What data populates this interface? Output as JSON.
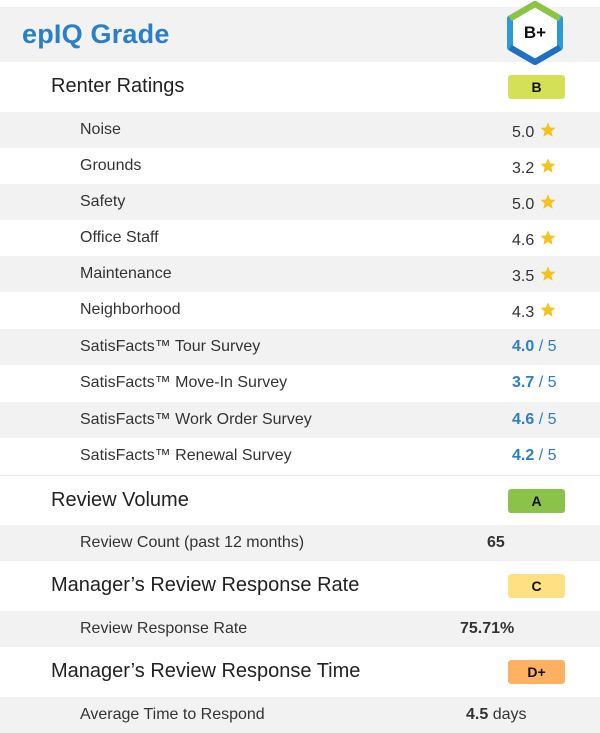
{
  "header": {
    "title": "epIQ Grade",
    "overall_grade": "B+",
    "hex_colors": {
      "top": "#8cc63f",
      "bottom": "#1f6fc5",
      "side": "#2a9bd8"
    }
  },
  "sections": {
    "renter_ratings": {
      "label": "Renter Ratings",
      "grade": "B",
      "grade_color": "#d4e157",
      "items": [
        {
          "label": "Noise",
          "value": "5.0"
        },
        {
          "label": "Grounds",
          "value": "3.2"
        },
        {
          "label": "Safety",
          "value": "5.0"
        },
        {
          "label": "Office Staff",
          "value": "4.6"
        },
        {
          "label": "Maintenance",
          "value": "3.5"
        },
        {
          "label": "Neighborhood",
          "value": "4.3"
        }
      ],
      "surveys": [
        {
          "label": "SatisFacts™ Tour Survey",
          "value": "4.0",
          "of": "/ 5"
        },
        {
          "label": "SatisFacts™ Move-In Survey",
          "value": "3.7",
          "of": "/ 5"
        },
        {
          "label": "SatisFacts™ Work Order Survey",
          "value": "4.6",
          "of": "/ 5"
        },
        {
          "label": "SatisFacts™ Renewal Survey",
          "value": "4.2",
          "of": "/ 5"
        }
      ]
    },
    "review_volume": {
      "label": "Review Volume",
      "grade": "A",
      "grade_color": "#8bc34a",
      "item_label": "Review Count (past 12 months)",
      "item_value": "65"
    },
    "response_rate": {
      "label": "Manager’s Review Response Rate",
      "grade": "C",
      "grade_color": "#ffe082",
      "item_label": "Review Response Rate",
      "item_value": "75.71%"
    },
    "response_time": {
      "label": "Manager’s Review Response Time",
      "grade": "D+",
      "grade_color": "#ffb060",
      "item_label": "Average Time to Respond",
      "item_value": "4.5",
      "item_unit": "days"
    }
  },
  "colors": {
    "star": "#f7c21a",
    "accent": "#2a7fc9",
    "shade": "#f2f2f2"
  }
}
